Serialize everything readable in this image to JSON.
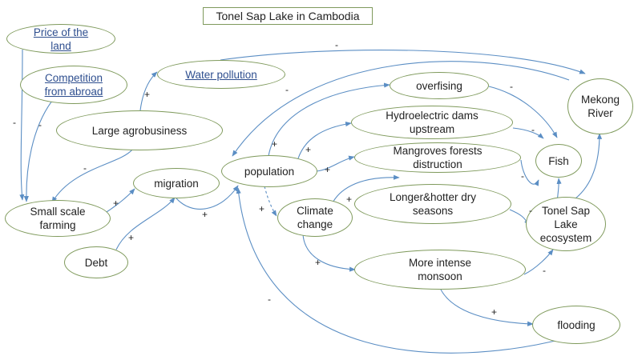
{
  "title": "Tonel Sap Lake in Cambodia",
  "colors": {
    "node_border": "#7f9a5c",
    "arrow": "#5b8ec4",
    "link_text": "#2f4f8f"
  },
  "nodes": {
    "price_land": "Price of the\nland",
    "competition": "Competition\nfrom abroad",
    "water_pollution": "Water pollution",
    "large_agro": "Large agrobusiness",
    "small_farming": "Small scale\nfarming",
    "migration": "migration",
    "debt": "Debt",
    "population": "population",
    "overfishing": "overfising",
    "hydro_dams": "Hydroelectric dams\nupstream",
    "mangroves": "Mangroves forests\ndistruction",
    "mekong": "Mekong\nRiver",
    "fish": "Fish",
    "climate": "Climate\nchange",
    "dry_seasons": "Longer&hotter dry\nseasons",
    "tonel_eco": "Tonel Sap\nLake\necosystem",
    "monsoon": "More intense\nmonsoon",
    "flooding": "flooding"
  },
  "signs": {
    "price_to_small": "-",
    "competition_to_small": "-",
    "agro_to_water": "+",
    "water_to_mekong": "-",
    "agro_to_small": "-",
    "small_to_migration": "+",
    "debt_to_migration": "+",
    "migration_to_population": "+",
    "mekong_to_population": "-",
    "population_to_overfishing": "+",
    "population_to_dams": "+",
    "population_to_mangroves": "+",
    "population_to_climate": "+",
    "overfishing_to_fish": "-",
    "dams_to_fish": "-",
    "mangroves_to_fish": "-",
    "climate_to_dry": "+",
    "climate_to_monsoon": "+",
    "dry_to_tonel": "-",
    "monsoon_to_tonel": "-",
    "monsoon_to_flooding": "+",
    "flooding_to_population": "-"
  }
}
